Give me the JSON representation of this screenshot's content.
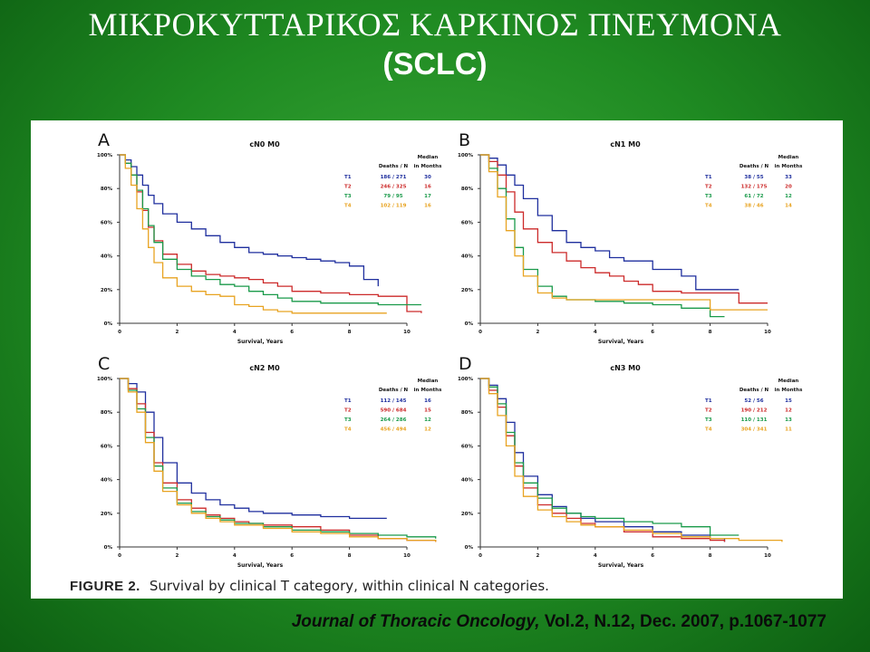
{
  "header": {
    "title": "ΜΙΚΡΟΚΥΤΤΑΡΙΚΟΣ ΚΑΡΚΙΝΟΣ ΠΝΕΥΜΟΝΑ",
    "subtitle": "(SCLC)"
  },
  "figure": {
    "label": "FIGURE 2.",
    "caption": "Survival by clinical T category, within clinical N categories."
  },
  "citation": {
    "journal": "Journal of Thoracic Oncology,",
    "details": "Vol.2, N.12, Dec. 2007, p.1067-1077"
  },
  "colors": {
    "T1": "#1f2f9e",
    "T2": "#cc2a2a",
    "T3": "#1a9a4a",
    "T4": "#e8a321"
  },
  "chart_data": [
    {
      "type": "line",
      "panel_letter": "A",
      "title": "cN0 M0",
      "xlabel": "Survival, Years",
      "xlim": [
        0,
        10
      ],
      "ylim": [
        0,
        100
      ],
      "xticks": [
        0,
        2,
        4,
        6,
        8,
        10
      ],
      "yticks": [
        "0%",
        "20%",
        "40%",
        "60%",
        "80%",
        "100%"
      ],
      "legend_header": [
        "Deaths / N",
        "Median in Months"
      ],
      "series": [
        {
          "name": "T1",
          "deaths_n": "186 / 271",
          "median": "30",
          "x": [
            0,
            0.2,
            0.4,
            0.6,
            0.8,
            1,
            1.2,
            1.5,
            2,
            2.5,
            3,
            3.5,
            4,
            4.5,
            5,
            5.5,
            6,
            6.5,
            7,
            7.5,
            8,
            8.5,
            9
          ],
          "y": [
            100,
            97,
            93,
            88,
            82,
            76,
            71,
            65,
            60,
            56,
            52,
            48,
            45,
            42,
            41,
            40,
            39,
            38,
            37,
            36,
            34,
            26,
            22
          ]
        },
        {
          "name": "T2",
          "deaths_n": "246 / 325",
          "median": "16",
          "x": [
            0,
            0.2,
            0.4,
            0.6,
            0.8,
            1,
            1.2,
            1.5,
            2,
            2.5,
            3,
            3.5,
            4,
            4.5,
            5,
            5.5,
            6,
            7,
            7.5,
            8,
            9,
            10,
            10.5
          ],
          "y": [
            100,
            95,
            88,
            78,
            67,
            57,
            49,
            41,
            35,
            31,
            29,
            28,
            27,
            26,
            24,
            22,
            19,
            18,
            18,
            17,
            16,
            7,
            6
          ]
        },
        {
          "name": "T3",
          "deaths_n": "79 / 95",
          "median": "17",
          "x": [
            0,
            0.2,
            0.4,
            0.6,
            0.8,
            1,
            1.2,
            1.5,
            2,
            2.5,
            3,
            3.5,
            4,
            4.5,
            5,
            5.5,
            6,
            7,
            8,
            9,
            10,
            10.5
          ],
          "y": [
            100,
            95,
            88,
            79,
            68,
            58,
            48,
            38,
            32,
            28,
            26,
            23,
            22,
            19,
            17,
            15,
            13,
            12,
            12,
            11,
            11,
            11
          ]
        },
        {
          "name": "T4",
          "deaths_n": "102 / 119",
          "median": "16",
          "x": [
            0,
            0.2,
            0.4,
            0.6,
            0.8,
            1,
            1.2,
            1.5,
            2,
            2.5,
            3,
            3.5,
            4,
            4.5,
            5,
            5.5,
            6,
            7,
            8,
            9,
            9.3
          ],
          "y": [
            100,
            92,
            82,
            68,
            56,
            45,
            36,
            27,
            22,
            19,
            17,
            16,
            11,
            10,
            8,
            7,
            6,
            6,
            6,
            6,
            6
          ]
        }
      ]
    },
    {
      "type": "line",
      "panel_letter": "B",
      "title": "cN1 M0",
      "xlabel": "Survival, Years",
      "xlim": [
        0,
        10
      ],
      "ylim": [
        0,
        100
      ],
      "xticks": [
        0,
        2,
        4,
        6,
        8,
        10
      ],
      "yticks": [
        "0%",
        "20%",
        "40%",
        "60%",
        "80%",
        "100%"
      ],
      "legend_header": [
        "Deaths / N",
        "Median in Months"
      ],
      "series": [
        {
          "name": "T1",
          "deaths_n": "38 / 55",
          "median": "33",
          "x": [
            0,
            0.3,
            0.6,
            0.9,
            1.2,
            1.5,
            2,
            2.5,
            3,
            3.5,
            4,
            4.5,
            5,
            6,
            7,
            7.5,
            8,
            9
          ],
          "y": [
            100,
            98,
            94,
            88,
            82,
            74,
            64,
            55,
            48,
            45,
            43,
            39,
            37,
            32,
            28,
            20,
            20,
            20
          ]
        },
        {
          "name": "T2",
          "deaths_n": "132 / 175",
          "median": "20",
          "x": [
            0,
            0.3,
            0.6,
            0.9,
            1.2,
            1.5,
            2,
            2.5,
            3,
            3.5,
            4,
            4.5,
            5,
            5.5,
            6,
            7,
            8,
            9,
            10
          ],
          "y": [
            100,
            96,
            88,
            78,
            66,
            56,
            48,
            42,
            37,
            33,
            30,
            28,
            25,
            23,
            19,
            18,
            18,
            12,
            12
          ]
        },
        {
          "name": "T3",
          "deaths_n": "61 / 72",
          "median": "12",
          "x": [
            0,
            0.3,
            0.6,
            0.9,
            1.2,
            1.5,
            2,
            2.5,
            3,
            4,
            5,
            6,
            7,
            7.5,
            8,
            8.5
          ],
          "y": [
            100,
            92,
            80,
            62,
            45,
            32,
            22,
            16,
            14,
            13,
            12,
            11,
            9,
            9,
            4,
            4
          ]
        },
        {
          "name": "T4",
          "deaths_n": "38 / 46",
          "median": "14",
          "x": [
            0,
            0.3,
            0.6,
            0.9,
            1.2,
            1.5,
            2,
            2.5,
            3,
            4,
            5,
            6,
            7,
            8,
            9,
            10
          ],
          "y": [
            100,
            90,
            75,
            55,
            40,
            28,
            18,
            15,
            14,
            14,
            14,
            14,
            14,
            8,
            8,
            8
          ]
        }
      ]
    },
    {
      "type": "line",
      "panel_letter": "C",
      "title": "cN2 M0",
      "xlabel": "Survival, Years",
      "xlim": [
        0,
        10
      ],
      "ylim": [
        0,
        100
      ],
      "xticks": [
        0,
        2,
        4,
        6,
        8,
        10
      ],
      "yticks": [
        "0%",
        "20%",
        "40%",
        "60%",
        "80%",
        "100%"
      ],
      "legend_header": [
        "Deaths / N",
        "Median in Months"
      ],
      "series": [
        {
          "name": "T1",
          "deaths_n": "112 / 145",
          "median": "16",
          "x": [
            0,
            0.3,
            0.6,
            0.9,
            1.2,
            1.5,
            2,
            2.5,
            3,
            3.5,
            4,
            4.5,
            5,
            6,
            7,
            8,
            9.3
          ],
          "y": [
            100,
            97,
            92,
            80,
            65,
            50,
            38,
            32,
            28,
            25,
            23,
            21,
            20,
            19,
            18,
            17,
            17
          ]
        },
        {
          "name": "T2",
          "deaths_n": "590 / 684",
          "median": "15",
          "x": [
            0,
            0.3,
            0.6,
            0.9,
            1.2,
            1.5,
            2,
            2.5,
            3,
            3.5,
            4,
            4.5,
            5,
            6,
            7,
            8,
            9,
            10,
            11
          ],
          "y": [
            100,
            94,
            85,
            68,
            50,
            38,
            28,
            23,
            19,
            17,
            15,
            14,
            13,
            12,
            10,
            7,
            5,
            4,
            3
          ]
        },
        {
          "name": "T3",
          "deaths_n": "264 / 286",
          "median": "12",
          "x": [
            0,
            0.3,
            0.6,
            0.9,
            1.2,
            1.5,
            2,
            2.5,
            3,
            3.5,
            4,
            5,
            6,
            7,
            8,
            9,
            10,
            11
          ],
          "y": [
            100,
            93,
            82,
            65,
            48,
            35,
            26,
            21,
            18,
            16,
            14,
            12,
            10,
            9,
            8,
            7,
            6,
            5
          ]
        },
        {
          "name": "T4",
          "deaths_n": "456 / 494",
          "median": "12",
          "x": [
            0,
            0.3,
            0.6,
            0.9,
            1.2,
            1.5,
            2,
            2.5,
            3,
            3.5,
            4,
            5,
            6,
            7,
            8,
            9,
            10,
            11
          ],
          "y": [
            100,
            92,
            80,
            62,
            45,
            33,
            25,
            20,
            17,
            15,
            13,
            11,
            9,
            8,
            6,
            5,
            4,
            3
          ]
        }
      ]
    },
    {
      "type": "line",
      "panel_letter": "D",
      "title": "cN3 M0",
      "xlabel": "Survival, Years",
      "xlim": [
        0,
        10
      ],
      "ylim": [
        0,
        100
      ],
      "xticks": [
        0,
        2,
        4,
        6,
        8,
        10
      ],
      "yticks": [
        "0%",
        "20%",
        "40%",
        "60%",
        "80%",
        "100%"
      ],
      "legend_header": [
        "Deaths / N",
        "Median in Months"
      ],
      "series": [
        {
          "name": "T1",
          "deaths_n": "52 / 56",
          "median": "15",
          "x": [
            0,
            0.3,
            0.6,
            0.9,
            1.2,
            1.5,
            2,
            2.5,
            3,
            3.5,
            4,
            5,
            6,
            7,
            8,
            8.5
          ],
          "y": [
            100,
            96,
            88,
            74,
            56,
            42,
            31,
            24,
            20,
            17,
            15,
            12,
            9,
            7,
            5,
            3
          ]
        },
        {
          "name": "T2",
          "deaths_n": "190 / 212",
          "median": "12",
          "x": [
            0,
            0.3,
            0.6,
            0.9,
            1.2,
            1.5,
            2,
            2.5,
            3,
            3.5,
            4,
            5,
            6,
            7,
            8,
            8.5
          ],
          "y": [
            100,
            93,
            83,
            66,
            48,
            35,
            25,
            20,
            17,
            14,
            12,
            9,
            6,
            5,
            4,
            3
          ]
        },
        {
          "name": "T3",
          "deaths_n": "110 / 131",
          "median": "13",
          "x": [
            0,
            0.3,
            0.6,
            0.9,
            1.2,
            1.5,
            2,
            2.5,
            3,
            3.5,
            4,
            5,
            6,
            7,
            8,
            9
          ],
          "y": [
            100,
            95,
            85,
            68,
            50,
            38,
            29,
            23,
            20,
            18,
            17,
            15,
            14,
            12,
            7,
            7
          ]
        },
        {
          "name": "T4",
          "deaths_n": "304 / 341",
          "median": "11",
          "x": [
            0,
            0.3,
            0.6,
            0.9,
            1.2,
            1.5,
            2,
            2.5,
            3,
            3.5,
            4,
            5,
            6,
            7,
            8,
            9,
            10.5
          ],
          "y": [
            100,
            91,
            78,
            60,
            42,
            30,
            22,
            18,
            15,
            13,
            12,
            10,
            8,
            6,
            5,
            4,
            3
          ]
        }
      ]
    }
  ]
}
